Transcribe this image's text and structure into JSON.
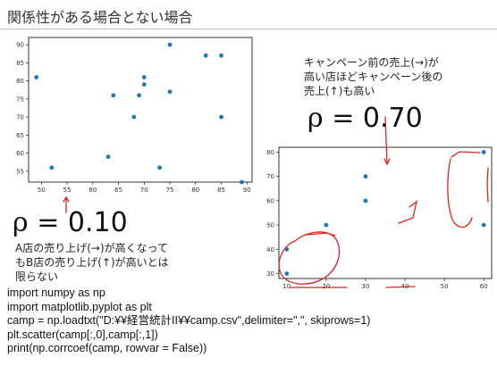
{
  "page": {
    "title": "関係性がある場合とない場合",
    "left_rho": {
      "symbol": "ρ",
      "equals": "=",
      "value": "0.10"
    },
    "right_rho": {
      "symbol": "ρ",
      "equals": "=",
      "value": "0.70"
    },
    "left_caption": [
      "A店の売り上げ(→)が高くなって",
      "もB店の売り上げ(↑)が高いとは",
      "限らない"
    ],
    "right_caption": [
      "キャンペーン前の売上(→)が",
      "高い店ほどキャンペーン後の",
      "売上(↑)も高い"
    ],
    "code_lines": [
      "import numpy as np",
      "import matplotlib.pyplot as plt",
      "camp = np.loadtxt(\"D:¥¥経営統計II¥¥camp.csv\",delimiter=\",\", skiprows=1)",
      "plt.scatter(camp[:,0],camp[:,1])",
      "print(np.corrcoef(camp, rowvar = False))"
    ],
    "colors": {
      "point": "#1f77b4",
      "annotation": "#e02020"
    }
  },
  "chart_data": [
    {
      "type": "scatter",
      "x_ticks": [
        50,
        55,
        60,
        65,
        70,
        75,
        80,
        85,
        90
      ],
      "y_ticks": [
        55,
        60,
        65,
        70,
        75,
        80,
        85,
        90
      ],
      "xlim": [
        47.5,
        91
      ],
      "ylim": [
        52,
        92
      ],
      "points": [
        [
          49,
          81
        ],
        [
          52,
          56
        ],
        [
          63,
          59
        ],
        [
          64,
          76
        ],
        [
          68,
          70
        ],
        [
          69,
          76
        ],
        [
          70,
          79
        ],
        [
          70,
          81
        ],
        [
          73,
          56
        ],
        [
          75,
          90
        ],
        [
          75,
          77
        ],
        [
          82,
          87
        ],
        [
          85,
          87
        ],
        [
          85,
          70
        ],
        [
          89,
          52
        ]
      ]
    },
    {
      "type": "scatter",
      "x_ticks": [
        10,
        20,
        30,
        40,
        50,
        60
      ],
      "y_ticks": [
        30,
        40,
        50,
        60,
        70,
        80
      ],
      "xlim": [
        8,
        62
      ],
      "ylim": [
        28,
        82
      ],
      "points": [
        [
          10,
          40
        ],
        [
          10,
          30
        ],
        [
          20,
          50
        ],
        [
          30,
          70
        ],
        [
          30,
          60
        ],
        [
          60,
          80
        ],
        [
          60,
          50
        ]
      ]
    }
  ]
}
